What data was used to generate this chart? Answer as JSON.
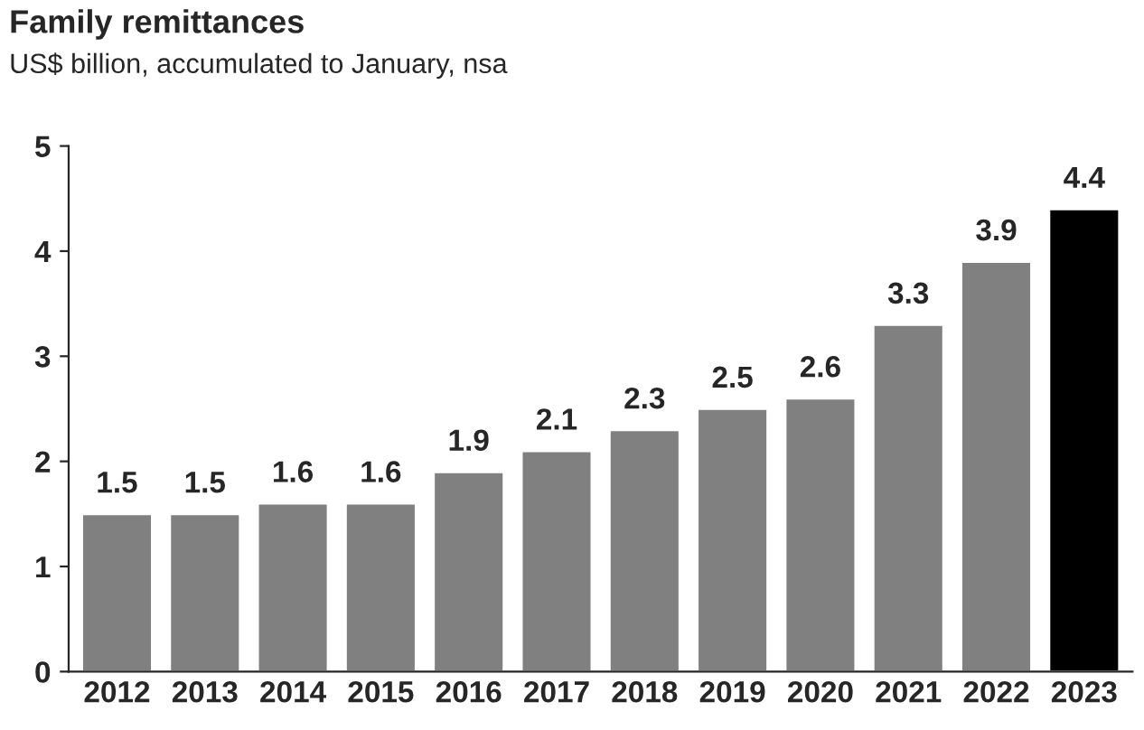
{
  "chart_data": {
    "type": "bar",
    "title": "Family remittances",
    "subtitle": "US$ billion, accumulated to January, nsa",
    "categories": [
      "2012",
      "2013",
      "2014",
      "2015",
      "2016",
      "2017",
      "2018",
      "2019",
      "2020",
      "2021",
      "2022",
      "2023"
    ],
    "values": [
      1.5,
      1.5,
      1.6,
      1.6,
      1.9,
      2.1,
      2.3,
      2.5,
      2.6,
      3.3,
      3.9,
      4.4
    ],
    "colors": [
      "#808080",
      "#808080",
      "#808080",
      "#808080",
      "#808080",
      "#808080",
      "#808080",
      "#808080",
      "#808080",
      "#808080",
      "#808080",
      "#000000"
    ],
    "ylim": [
      0,
      5
    ],
    "yticks": [
      0,
      1,
      2,
      3,
      4,
      5
    ],
    "grid": false,
    "data_labels": true
  }
}
